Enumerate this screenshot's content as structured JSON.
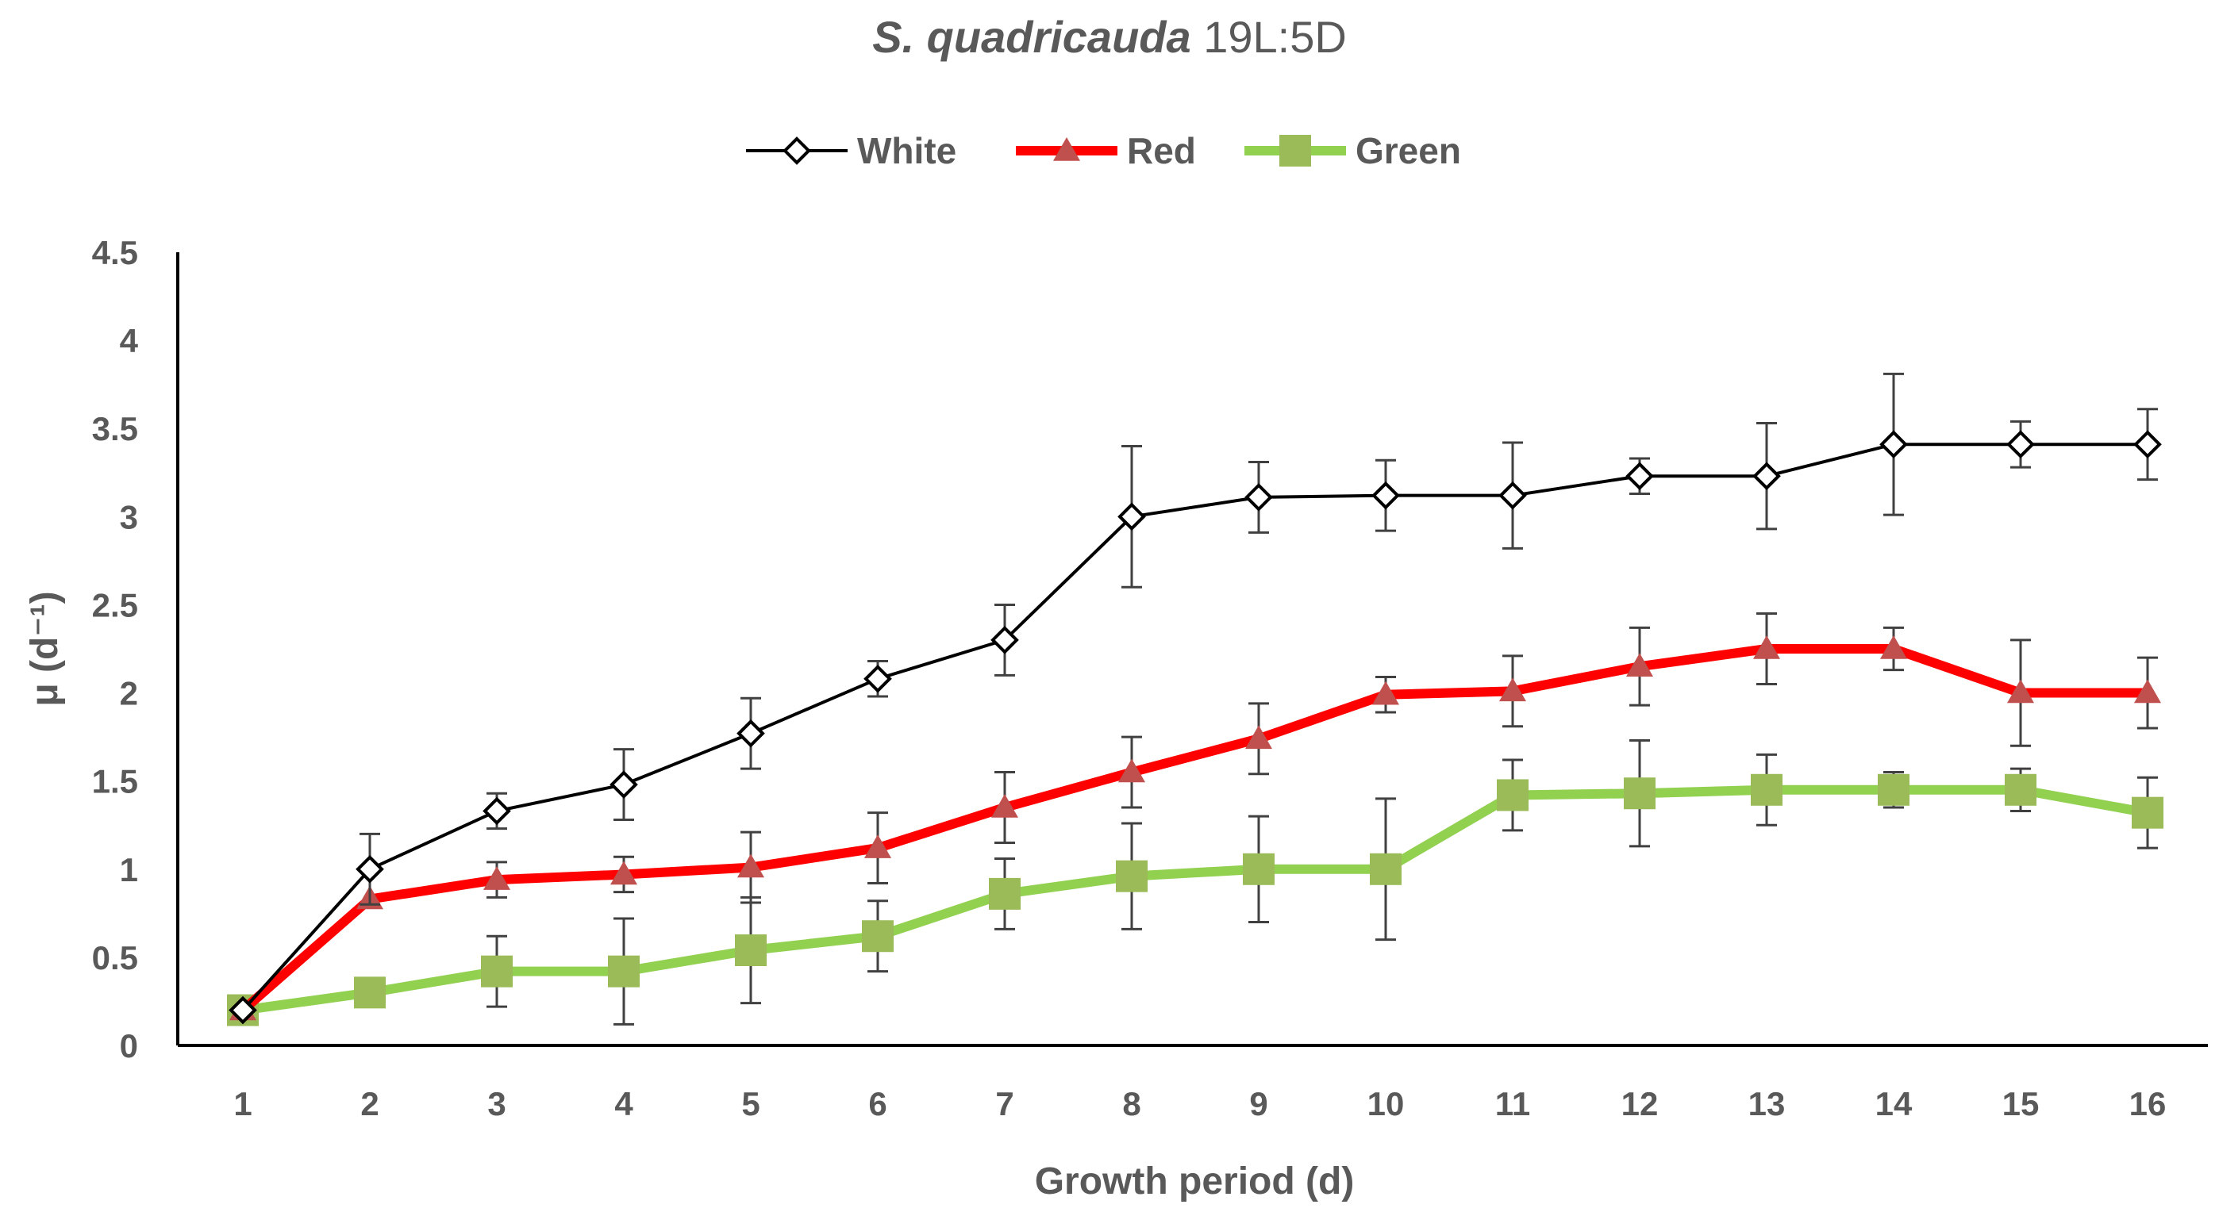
{
  "chart_data": {
    "type": "line",
    "title_italic": "S. quadricauda",
    "title_rest": " 19L:5D",
    "xlabel": "Growth period (d)",
    "ylabel": "μ (d⁻¹)",
    "ylim": [
      0,
      4.5
    ],
    "yticks": [
      0,
      0.5,
      1,
      1.5,
      2,
      2.5,
      3,
      3.5,
      4,
      4.5
    ],
    "ytick_labels": [
      "0",
      "0.5",
      "1",
      "1.5",
      "2",
      "2.5",
      "3",
      "3.5",
      "4",
      "4.5"
    ],
    "categories": [
      "1",
      "2",
      "3",
      "4",
      "5",
      "6",
      "7",
      "8",
      "9",
      "10",
      "11",
      "12",
      "13",
      "14",
      "15",
      "16"
    ],
    "grid": false,
    "legend_position": "top-center",
    "series": [
      {
        "name": "White",
        "color": "#000000",
        "marker": "diamond-open",
        "values": [
          0.2,
          1.0,
          1.33,
          1.48,
          1.77,
          2.08,
          2.3,
          3.0,
          3.11,
          3.12,
          3.12,
          3.23,
          3.23,
          3.41,
          3.41,
          3.41
        ],
        "errors": [
          0.0,
          0.2,
          0.1,
          0.2,
          0.2,
          0.1,
          0.2,
          0.4,
          0.2,
          0.2,
          0.3,
          0.1,
          0.3,
          0.4,
          0.13,
          0.2
        ]
      },
      {
        "name": "Red",
        "color": "#ff0000",
        "marker_color": "#c0504d",
        "marker": "triangle",
        "values": [
          0.2,
          0.83,
          0.94,
          0.97,
          1.01,
          1.12,
          1.35,
          1.55,
          1.74,
          1.99,
          2.01,
          2.15,
          2.25,
          2.25,
          2.0,
          2.0
        ],
        "errors": [
          0.0,
          0.0,
          0.1,
          0.1,
          0.2,
          0.2,
          0.2,
          0.2,
          0.2,
          0.1,
          0.2,
          0.22,
          0.2,
          0.12,
          0.3,
          0.2
        ]
      },
      {
        "name": "Green",
        "color": "#92d050",
        "marker_color": "#9bbb59",
        "marker": "square",
        "values": [
          0.2,
          0.3,
          0.42,
          0.42,
          0.54,
          0.62,
          0.86,
          0.96,
          1.0,
          1.0,
          1.42,
          1.43,
          1.45,
          1.45,
          1.45,
          1.32
        ],
        "errors": [
          0.0,
          0.0,
          0.2,
          0.3,
          0.3,
          0.2,
          0.2,
          0.3,
          0.3,
          0.4,
          0.2,
          0.3,
          0.2,
          0.1,
          0.12,
          0.2
        ]
      }
    ]
  }
}
